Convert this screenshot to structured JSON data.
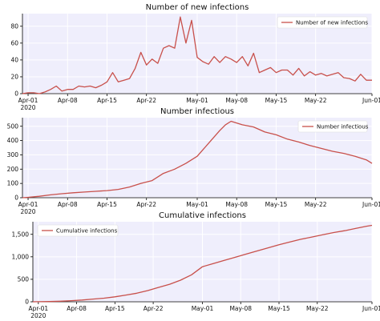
{
  "figure": {
    "line_color": "#c8504b",
    "plot_background": "#efeefc"
  },
  "x_ticks": [
    "Apr-01\n2020",
    "Apr-08",
    "Apr-15",
    "Apr-22",
    "May-01",
    "May-08",
    "May-15",
    "May-22",
    "Jun-01"
  ],
  "chart_data": [
    {
      "type": "line",
      "title": "Number of new infections",
      "legend": "top-right",
      "grid": true,
      "x_range": [
        "2020-03-31",
        "2020-06-01"
      ],
      "ylim": [
        0,
        95
      ],
      "y_ticks": [
        0,
        20,
        40,
        60,
        80
      ],
      "series": [
        {
          "name": "Number of new infections",
          "x": [
            "2020-03-31",
            "2020-04-01",
            "2020-04-02",
            "2020-04-03",
            "2020-04-04",
            "2020-04-05",
            "2020-04-06",
            "2020-04-07",
            "2020-04-08",
            "2020-04-09",
            "2020-04-10",
            "2020-04-11",
            "2020-04-12",
            "2020-04-13",
            "2020-04-14",
            "2020-04-15",
            "2020-04-16",
            "2020-04-17",
            "2020-04-18",
            "2020-04-19",
            "2020-04-20",
            "2020-04-21",
            "2020-04-22",
            "2020-04-23",
            "2020-04-24",
            "2020-04-25",
            "2020-04-26",
            "2020-04-27",
            "2020-04-28",
            "2020-04-29",
            "2020-04-30",
            "2020-05-01",
            "2020-05-02",
            "2020-05-03",
            "2020-05-04",
            "2020-05-05",
            "2020-05-06",
            "2020-05-07",
            "2020-05-08",
            "2020-05-09",
            "2020-05-10",
            "2020-05-11",
            "2020-05-12",
            "2020-05-13",
            "2020-05-14",
            "2020-05-15",
            "2020-05-16",
            "2020-05-17",
            "2020-05-18",
            "2020-05-19",
            "2020-05-20",
            "2020-05-21",
            "2020-05-22",
            "2020-05-23",
            "2020-05-24",
            "2020-05-25",
            "2020-05-26",
            "2020-05-27",
            "2020-05-28",
            "2020-05-29",
            "2020-05-30",
            "2020-05-31",
            "2020-06-01"
          ],
          "values": [
            0,
            1,
            1,
            0,
            2,
            5,
            9,
            3,
            5,
            5,
            9,
            8,
            9,
            7,
            10,
            14,
            25,
            14,
            16,
            18,
            30,
            49,
            34,
            41,
            36,
            54,
            57,
            54,
            91,
            60,
            87,
            43,
            38,
            35,
            44,
            37,
            44,
            41,
            37,
            44,
            33,
            48,
            25,
            28,
            31,
            25,
            28,
            28,
            22,
            30,
            21,
            26,
            22,
            24,
            21,
            23,
            25,
            19,
            18,
            15,
            23,
            16,
            16
          ]
        }
      ]
    },
    {
      "type": "line",
      "title": "Number infectious",
      "legend": "top-right",
      "grid": true,
      "x_range": [
        "2020-03-31",
        "2020-06-01"
      ],
      "ylim": [
        0,
        560
      ],
      "y_ticks": [
        0,
        100,
        200,
        300,
        400,
        500
      ],
      "series": [
        {
          "name": "Number infectious",
          "x": [
            "2020-03-31",
            "2020-04-01",
            "2020-04-03",
            "2020-04-05",
            "2020-04-07",
            "2020-04-09",
            "2020-04-11",
            "2020-04-13",
            "2020-04-15",
            "2020-04-17",
            "2020-04-19",
            "2020-04-21",
            "2020-04-23",
            "2020-04-25",
            "2020-04-27",
            "2020-04-29",
            "2020-05-01",
            "2020-05-03",
            "2020-05-05",
            "2020-05-06",
            "2020-05-07",
            "2020-05-09",
            "2020-05-11",
            "2020-05-13",
            "2020-05-15",
            "2020-05-17",
            "2020-05-19",
            "2020-05-21",
            "2020-05-23",
            "2020-05-25",
            "2020-05-27",
            "2020-05-29",
            "2020-05-31",
            "2020-06-01"
          ],
          "values": [
            0,
            3,
            10,
            20,
            28,
            35,
            40,
            45,
            50,
            58,
            75,
            100,
            120,
            170,
            200,
            240,
            290,
            380,
            470,
            510,
            535,
            510,
            495,
            460,
            440,
            410,
            390,
            365,
            345,
            325,
            310,
            290,
            265,
            240
          ]
        }
      ]
    },
    {
      "type": "line",
      "title": "Cumulative infections",
      "legend": "top-left",
      "grid": true,
      "x_range": [
        "2020-03-31",
        "2020-06-01"
      ],
      "ylim": [
        0,
        1780
      ],
      "y_ticks": [
        0,
        500,
        1000,
        1500
      ],
      "y_tick_labels": [
        "0",
        "500",
        "1,000",
        "1,500"
      ],
      "series": [
        {
          "name": "Cumulative infections",
          "x": [
            "2020-03-31",
            "2020-04-01",
            "2020-04-03",
            "2020-04-05",
            "2020-04-07",
            "2020-04-09",
            "2020-04-11",
            "2020-04-13",
            "2020-04-15",
            "2020-04-17",
            "2020-04-19",
            "2020-04-21",
            "2020-04-23",
            "2020-04-25",
            "2020-04-27",
            "2020-04-29",
            "2020-05-01",
            "2020-05-03",
            "2020-05-05",
            "2020-05-07",
            "2020-05-09",
            "2020-05-11",
            "2020-05-13",
            "2020-05-15",
            "2020-05-17",
            "2020-05-19",
            "2020-05-21",
            "2020-05-23",
            "2020-05-25",
            "2020-05-27",
            "2020-05-29",
            "2020-05-31",
            "2020-06-01"
          ],
          "values": [
            0,
            2,
            5,
            12,
            25,
            40,
            60,
            80,
            110,
            150,
            190,
            250,
            320,
            390,
            480,
            600,
            780,
            850,
            920,
            990,
            1060,
            1130,
            1200,
            1270,
            1330,
            1390,
            1440,
            1490,
            1540,
            1580,
            1630,
            1680,
            1700
          ]
        }
      ]
    }
  ]
}
